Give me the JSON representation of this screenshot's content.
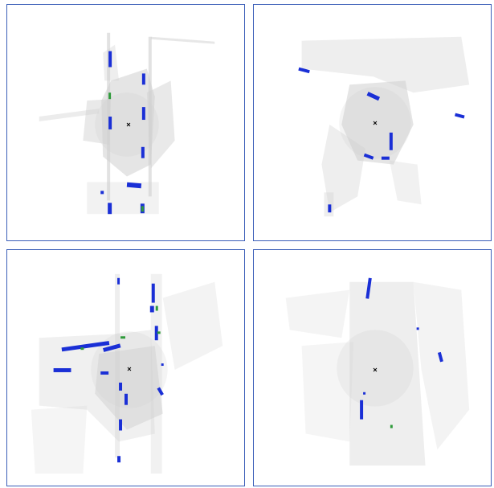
{
  "panels": [
    {
      "name": "scan-panel-top-left"
    },
    {
      "name": "scan-panel-top-right"
    },
    {
      "name": "scan-panel-bottom-left"
    },
    {
      "name": "scan-panel-bottom-right"
    }
  ],
  "colors": {
    "border": "#3b5eb8",
    "point_cloud": "#c8c8c8",
    "box_predicted": "#1a2fd6",
    "box_ground_truth": "#2e9a3a",
    "ego_marker": "#000000"
  }
}
